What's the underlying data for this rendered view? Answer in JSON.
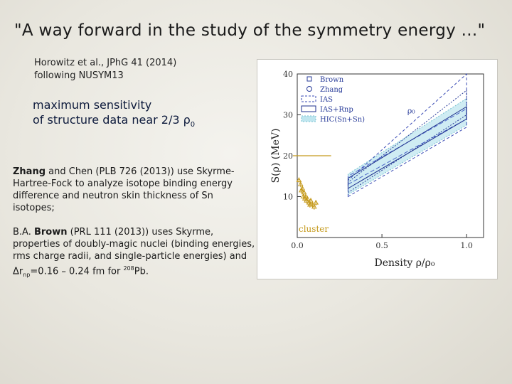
{
  "slide": {
    "title": "\"A way forward in the study of the symmetry energy ...\"",
    "citation_line1": "Horowitz et al., JPhG 41 (2014)",
    "citation_line2": "following NUSYM13",
    "highlight_line1": "maximum sensitivity",
    "highlight_line2_text": "of structure data near 2/3 ρ",
    "highlight_line2_sub": "0",
    "para1": {
      "name": "Zhang",
      "rest": " and Chen (PLB 726 (2013)) use Skyrme-Hartree-Fock to analyze isotope binding energy difference and neutron skin thickness of Sn isotopes;"
    },
    "para2": {
      "prefix": "B.A. ",
      "name": "Brown",
      "rest": " (PRL 111 (2013)) uses Skyrme, properties of doubly-magic nuclei (binding energies, rms charge radii, and single-particle energies) and Δr",
      "sub": "np",
      "mid": "=0.16 – 0.24 fm for ",
      "sup": "208",
      "end": "Pb."
    }
  },
  "chart_data": {
    "type": "line",
    "xlabel": "Density ρ/ρ₀",
    "ylabel": "S(ρ) (MeV)",
    "xlim": [
      0,
      1.1
    ],
    "ylim": [
      0,
      40
    ],
    "x_ticks": [
      "0.0",
      "0.5",
      "1.0"
    ],
    "y_ticks": [
      "10",
      "20",
      "30",
      "40"
    ],
    "legend": [
      "Brown",
      "Zhang",
      "IAS",
      "IAS+Rnp",
      "HIC(Sn+Sn)"
    ],
    "legend_position": "top-left",
    "series": [
      {
        "name": "Brown",
        "color": "#2a3d9a",
        "x": [
          0.3,
          1.0
        ],
        "lower": [
          11,
          30
        ],
        "upper": [
          13.5,
          36
        ]
      },
      {
        "name": "Zhang",
        "color": "#4a64c8",
        "x": [
          0.3,
          1.0
        ],
        "lower": [
          13,
          29
        ],
        "upper": [
          15,
          31.5
        ]
      },
      {
        "name": "IAS",
        "color": "#3a4bb5",
        "x": [
          0.3,
          1.0
        ],
        "lower": [
          10,
          27
        ],
        "upper": [
          14,
          40
        ]
      },
      {
        "name": "IAS+Rnp",
        "color": "#1e2f8c",
        "x": [
          0.3,
          1.0
        ],
        "lower": [
          12,
          29
        ],
        "upper": [
          14.5,
          32
        ]
      },
      {
        "name": "HIC(Sn+Sn)",
        "color": "#86cbd9",
        "x": [
          0.3,
          1.0
        ],
        "lower": [
          10.5,
          27.5
        ],
        "upper": [
          15.5,
          34
        ]
      }
    ],
    "cluster": {
      "label": "cluster",
      "color": "#c59a1c",
      "points": [
        [
          0.01,
          14
        ],
        [
          0.02,
          13
        ],
        [
          0.025,
          11.5
        ],
        [
          0.03,
          12
        ],
        [
          0.035,
          10
        ],
        [
          0.04,
          11
        ],
        [
          0.045,
          9.5
        ],
        [
          0.05,
          10
        ],
        [
          0.055,
          9
        ],
        [
          0.06,
          9.5
        ],
        [
          0.07,
          8.5
        ],
        [
          0.075,
          8
        ],
        [
          0.08,
          9
        ],
        [
          0.09,
          8
        ],
        [
          0.1,
          7.5
        ],
        [
          0.11,
          8.5
        ]
      ]
    },
    "reference_line": {
      "y": 20,
      "x": [
        0.0,
        0.2
      ],
      "color": "#c59a1c"
    },
    "annotation": "ρ₀"
  }
}
